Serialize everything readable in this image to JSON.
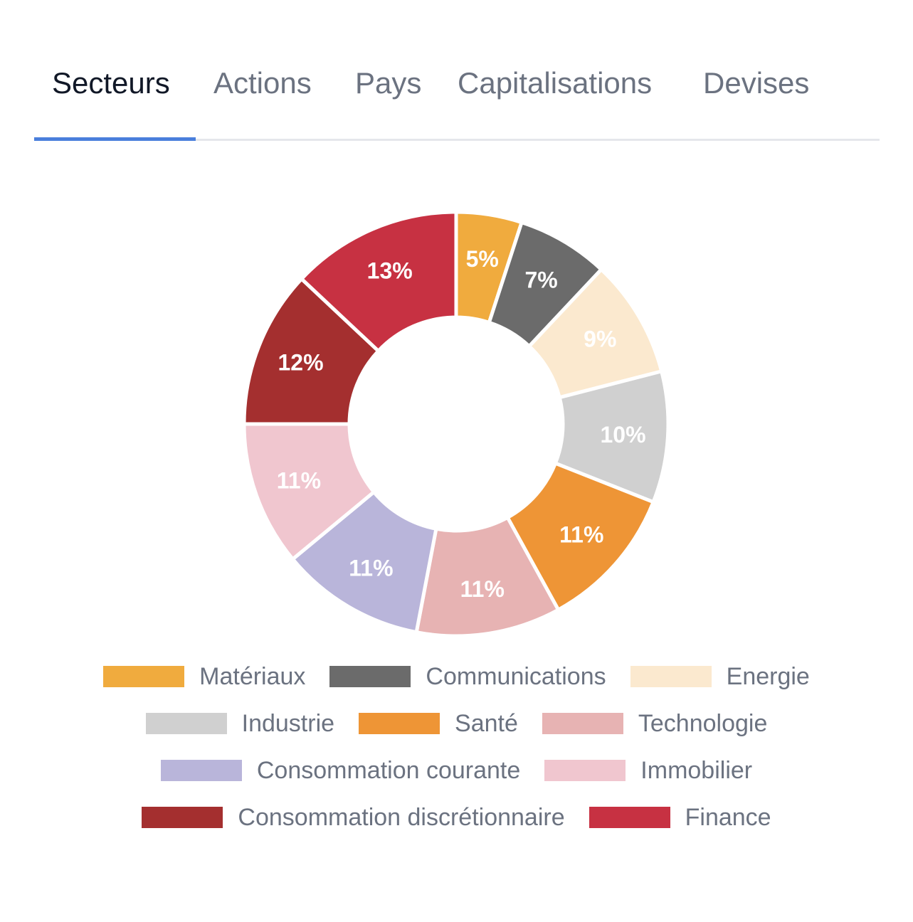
{
  "tabs": [
    {
      "label": "Secteurs",
      "active": true
    },
    {
      "label": "Actions",
      "active": false
    },
    {
      "label": "Pays",
      "active": false
    },
    {
      "label": "Capitalisations",
      "active": false
    },
    {
      "label": "Devises",
      "active": false
    }
  ],
  "chart_data": {
    "type": "pie",
    "title": "",
    "legend_position": "bottom",
    "categories": [
      "Matériaux",
      "Communications",
      "Energie",
      "Industrie",
      "Santé",
      "Technologie",
      "Consommation courante",
      "Immobilier",
      "Consommation discrétionnaire",
      "Finance"
    ],
    "values": [
      5,
      7,
      9,
      10,
      11,
      11,
      11,
      11,
      12,
      13
    ],
    "labels": [
      "5%",
      "7%",
      "9%",
      "10%",
      "11%",
      "11%",
      "11%",
      "11%",
      "12%",
      "13%"
    ],
    "colors": [
      "#f0ab3e",
      "#6b6b6b",
      "#fbe9cf",
      "#d0d0d0",
      "#ee9536",
      "#e7b3b3",
      "#b9b5da",
      "#f0c6cf",
      "#a42f2f",
      "#c73142"
    ]
  }
}
